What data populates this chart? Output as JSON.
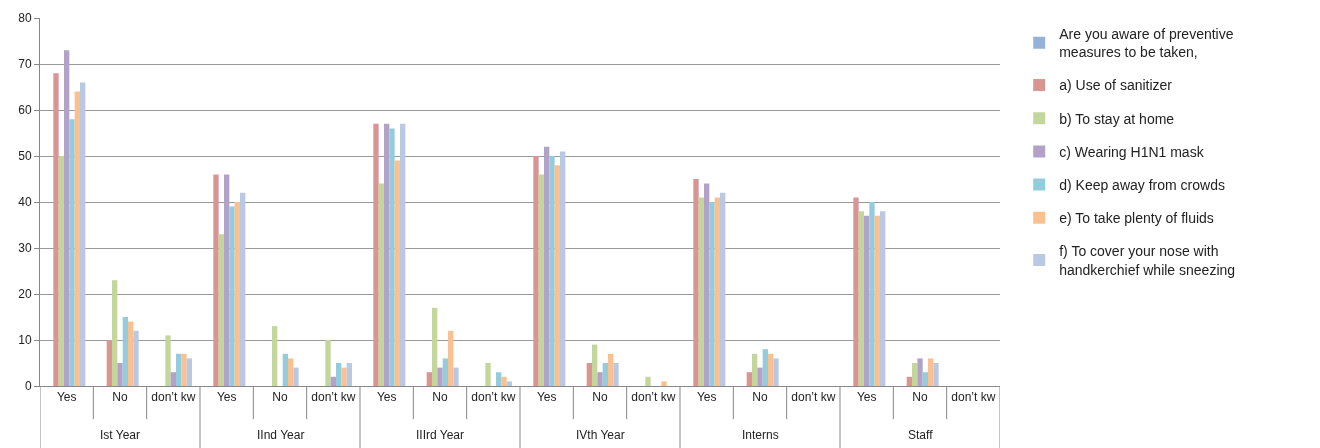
{
  "chart_data": {
    "type": "bar",
    "categories": [
      "Yes",
      "No",
      "don’t kw",
      "Yes",
      "No",
      "don’t kw",
      "Yes",
      "No",
      "don’t kw",
      "Yes",
      "No",
      "don’t kw",
      "Yes",
      "No",
      "don’t kw",
      "Yes",
      "No",
      "don’t kw"
    ],
    "annotations": [
      "Ist Year",
      "IInd Year",
      "IIIrd Year",
      "IVth Year",
      "Interns",
      "Staff"
    ],
    "series": [
      {
        "name": "Are you aware of preventive measures to be taken,",
        "color": "#95b3d7",
        "values": [
          null,
          null,
          null,
          null,
          null,
          null,
          null,
          null,
          null,
          null,
          null,
          null,
          null,
          null,
          null,
          null,
          null,
          null
        ]
      },
      {
        "name": "a) Use of sanitizer",
        "color": "#d99594",
        "values": [
          68,
          10,
          0,
          46,
          0,
          0,
          57,
          3,
          0,
          50,
          5,
          0,
          45,
          3,
          0,
          41,
          2,
          0
        ]
      },
      {
        "name": "b) To stay at home",
        "color": "#c3d69b",
        "values": [
          50,
          23,
          11,
          33,
          13,
          10,
          44,
          17,
          5,
          46,
          9,
          2,
          41,
          7,
          0,
          38,
          5,
          0
        ]
      },
      {
        "name": "c) Wearing H1N1 mask",
        "color": "#b2a2c7",
        "values": [
          73,
          5,
          3,
          46,
          0,
          2,
          57,
          4,
          0,
          52,
          3,
          0,
          44,
          4,
          0,
          37,
          6,
          0
        ]
      },
      {
        "name": "d) Keep away from crowds",
        "color": "#93cddd",
        "values": [
          58,
          15,
          7,
          39,
          7,
          5,
          56,
          6,
          3,
          50,
          5,
          0,
          40,
          8,
          0,
          40,
          3,
          0
        ]
      },
      {
        "name": "e) To take plenty of fluids",
        "color": "#fac08f",
        "values": [
          64,
          14,
          7,
          40,
          6,
          4,
          49,
          12,
          2,
          48,
          7,
          1,
          41,
          7,
          0,
          37,
          6,
          0
        ]
      },
      {
        "name": "f) To cover your nose with handkerchief while sneezing",
        "color": "#b9c8e3",
        "values": [
          66,
          12,
          6,
          42,
          4,
          5,
          57,
          4,
          1,
          51,
          5,
          0,
          42,
          6,
          0,
          38,
          5,
          0
        ]
      }
    ],
    "ylim": [
      0,
      80
    ],
    "yticks": [
      0,
      10,
      20,
      30,
      40,
      50,
      60,
      70,
      80
    ],
    "grid": "y",
    "legend": "right"
  }
}
